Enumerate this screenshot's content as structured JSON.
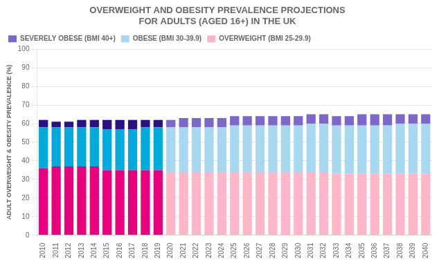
{
  "chart_data": {
    "type": "bar",
    "title": "OVERWEIGHT AND OBESITY PREVALENCE PROJECTIONS\nFOR ADULTS (AGED 16+) IN THE UK",
    "y_label": "ADULT OVERWEIGHT & OBESITY PREVALENCE (%)",
    "categories": [
      "2010",
      "2011",
      "2012",
      "2013",
      "2014",
      "2015",
      "2016",
      "2017",
      "2018",
      "2019",
      "2020",
      "2021",
      "2022",
      "2023",
      "2024",
      "2025",
      "2026",
      "2027",
      "2028",
      "2029",
      "2030",
      "2031",
      "2032",
      "2033",
      "2034",
      "2035",
      "2036",
      "2037",
      "2038",
      "2039",
      "2040"
    ],
    "series": [
      {
        "name": "OVERWEIGHT (BMI 25-29.9)",
        "color": "#FFB6C8",
        "colors": [
          "#E8007D",
          "#E8007D",
          "#E8007D",
          "#E8007D",
          "#E8007D",
          "#E8007D",
          "#E8007D",
          "#E8007D",
          "#E8007D",
          "#E8007D",
          "#FFB6C8",
          "#FFB6C8",
          "#FFB6C8",
          "#FFB6C8",
          "#FFB6C8",
          "#FFB6C8",
          "#FFB6C8",
          "#FFB6C8",
          "#FFB6C8",
          "#FFB6C8",
          "#FFB6C8",
          "#FFB6C8",
          "#FFB6C8",
          "#FFB6C8",
          "#FFB6C8",
          "#FFB6C8",
          "#FFB6C8",
          "#FFB6C8",
          "#FFB6C8",
          "#FFB6C8",
          "#FFB6C8"
        ],
        "values": [
          36,
          37,
          37,
          37,
          37,
          35,
          35,
          35,
          35,
          35,
          34,
          34,
          34,
          34,
          34,
          34,
          34,
          34,
          34,
          34,
          34,
          34,
          34,
          33,
          33,
          33,
          33,
          33,
          33,
          33,
          33
        ]
      },
      {
        "name": "OBESE (BMI 30-39.9)",
        "color": "#A8D8F0",
        "colors": [
          "#00AADD",
          "#00AADD",
          "#00AADD",
          "#00AADD",
          "#00AADD",
          "#00AADD",
          "#00AADD",
          "#00AADD",
          "#00AADD",
          "#00AADD",
          "#A8D8F0",
          "#A8D8F0",
          "#A8D8F0",
          "#A8D8F0",
          "#A8D8F0",
          "#A8D8F0",
          "#A8D8F0",
          "#A8D8F0",
          "#A8D8F0",
          "#A8D8F0",
          "#A8D8F0",
          "#A8D8F0",
          "#A8D8F0",
          "#A8D8F0",
          "#A8D8F0",
          "#A8D8F0",
          "#A8D8F0",
          "#A8D8F0",
          "#A8D8F0",
          "#A8D8F0",
          "#A8D8F0"
        ],
        "values": [
          22,
          21,
          21,
          21,
          21,
          22,
          22,
          22,
          23,
          23,
          24,
          24,
          24,
          24,
          24,
          25,
          25,
          25,
          25,
          25,
          25,
          26,
          26,
          26,
          26,
          26,
          26,
          26,
          27,
          27,
          27
        ]
      },
      {
        "name": "SEVERELY OBESE (BMI 40+)",
        "color": "#7B68C8",
        "colors": [
          "#2A1080",
          "#2A1080",
          "#2A1080",
          "#2A1080",
          "#2A1080",
          "#2A1080",
          "#2A1080",
          "#2A1080",
          "#2A1080",
          "#2A1080",
          "#7B68C8",
          "#7B68C8",
          "#7B68C8",
          "#7B68C8",
          "#7B68C8",
          "#7B68C8",
          "#7B68C8",
          "#7B68C8",
          "#7B68C8",
          "#7B68C8",
          "#7B68C8",
          "#7B68C8",
          "#7B68C8",
          "#7B68C8",
          "#7B68C8",
          "#7B68C8",
          "#7B68C8",
          "#7B68C8",
          "#7B68C8",
          "#7B68C8",
          "#7B68C8"
        ],
        "values": [
          4,
          3,
          3,
          4,
          4,
          5,
          5,
          5,
          4,
          4,
          4,
          5,
          5,
          5,
          5,
          5,
          5,
          5,
          5,
          5,
          5,
          5,
          5,
          5,
          5,
          6,
          6,
          6,
          5,
          5,
          5
        ]
      }
    ],
    "stacked": true,
    "ylim": [
      0,
      100
    ],
    "yticks": [
      0,
      10,
      20,
      30,
      40,
      50,
      60,
      70,
      80,
      90,
      100
    ],
    "grid": true,
    "legend": "upper left"
  }
}
